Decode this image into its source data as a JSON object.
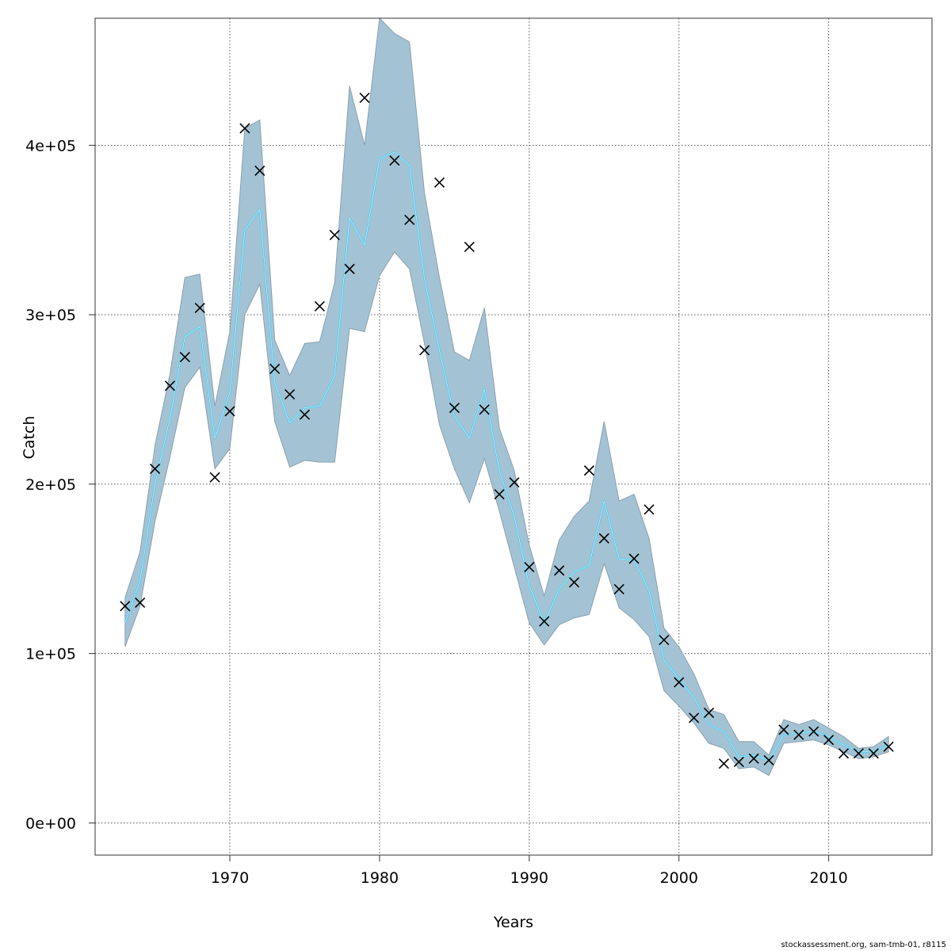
{
  "chart_data": {
    "type": "line",
    "title": "",
    "xlabel": "Years",
    "ylabel": "Catch",
    "xlim": [
      1961.0,
      2016.9
    ],
    "ylim": [
      -19000,
      475000
    ],
    "xticks": [
      1970,
      1980,
      1990,
      2000,
      2010
    ],
    "yticks": [
      0,
      100000,
      200000,
      300000,
      400000
    ],
    "ytick_labels": [
      "0e+00",
      "1e+05",
      "2e+05",
      "3e+05",
      "4e+05"
    ],
    "grid": true,
    "colors": {
      "band": "#a3c3d4",
      "band_edge": "#8aa0ad",
      "line": "#5bc8ea",
      "marker": "#000000",
      "grid": "#555555"
    },
    "years": [
      1963,
      1964,
      1965,
      1966,
      1967,
      1968,
      1969,
      1970,
      1971,
      1972,
      1973,
      1974,
      1975,
      1976,
      1977,
      1978,
      1979,
      1980,
      1981,
      1982,
      1983,
      1984,
      1985,
      1986,
      1987,
      1988,
      1989,
      1990,
      1991,
      1992,
      1993,
      1994,
      1995,
      1996,
      1997,
      1998,
      1999,
      2000,
      2001,
      2002,
      2003,
      2004,
      2005,
      2006,
      2007,
      2008,
      2009,
      2010,
      2011,
      2012,
      2013,
      2014
    ],
    "series": [
      {
        "name": "",
        "kind": "estimate",
        "values": [
          118000,
          143000,
          200000,
          239000,
          287000,
          293000,
          227000,
          254000,
          350000,
          362000,
          260000,
          236000,
          245000,
          246000,
          264000,
          357000,
          341000,
          392000,
          396000,
          388000,
          321000,
          279000,
          240000,
          227000,
          256000,
          208000,
          181000,
          140000,
          118000,
          138000,
          148000,
          152000,
          190000,
          156000,
          155000,
          137000,
          96000,
          85000,
          74000,
          58000,
          54000,
          39000,
          40000,
          37000,
          52000,
          53000,
          54000,
          51000,
          46000,
          42000,
          42000,
          46000
        ]
      },
      {
        "name": "",
        "kind": "lower_bound",
        "values": [
          104000,
          128000,
          178000,
          216000,
          257000,
          269000,
          209000,
          221000,
          300000,
          318000,
          237000,
          210000,
          214000,
          213000,
          213000,
          292000,
          290000,
          323000,
          337000,
          327000,
          283000,
          235000,
          209000,
          189000,
          215000,
          184000,
          151000,
          118000,
          105000,
          117000,
          121000,
          123000,
          153000,
          127000,
          120000,
          110000,
          78000,
          69000,
          59000,
          47000,
          44000,
          32000,
          33000,
          28000,
          47000,
          48000,
          49000,
          46000,
          42000,
          38000,
          39000,
          42000
        ]
      },
      {
        "name": "",
        "kind": "upper_bound",
        "values": [
          133000,
          160000,
          223000,
          265000,
          322000,
          324000,
          246000,
          290000,
          410000,
          415000,
          285000,
          264000,
          283000,
          284000,
          319000,
          435000,
          400000,
          475000,
          466000,
          461000,
          372000,
          322000,
          278000,
          273000,
          304000,
          233000,
          208000,
          164000,
          134000,
          167000,
          181000,
          190000,
          237000,
          190000,
          194000,
          168000,
          115000,
          104000,
          88000,
          67000,
          64000,
          48000,
          48000,
          40000,
          61000,
          58000,
          61000,
          56000,
          51000,
          44000,
          45000,
          51000
        ]
      },
      {
        "name": "",
        "kind": "observed",
        "values": [
          128000,
          130000,
          209000,
          258000,
          275000,
          304000,
          204000,
          243000,
          410000,
          385000,
          268000,
          253000,
          241000,
          305000,
          347000,
          327000,
          428000,
          null,
          391000,
          356000,
          279000,
          378000,
          245000,
          340000,
          244000,
          194000,
          201000,
          151000,
          119000,
          149000,
          142000,
          208000,
          168000,
          138000,
          156000,
          185000,
          108000,
          83000,
          62000,
          65000,
          35000,
          36000,
          38000,
          37000,
          55000,
          52000,
          54000,
          49000,
          41000,
          41000,
          41000,
          45000
        ]
      }
    ]
  },
  "footer": "stockassessment.org, sam-tmb-01, r8115"
}
